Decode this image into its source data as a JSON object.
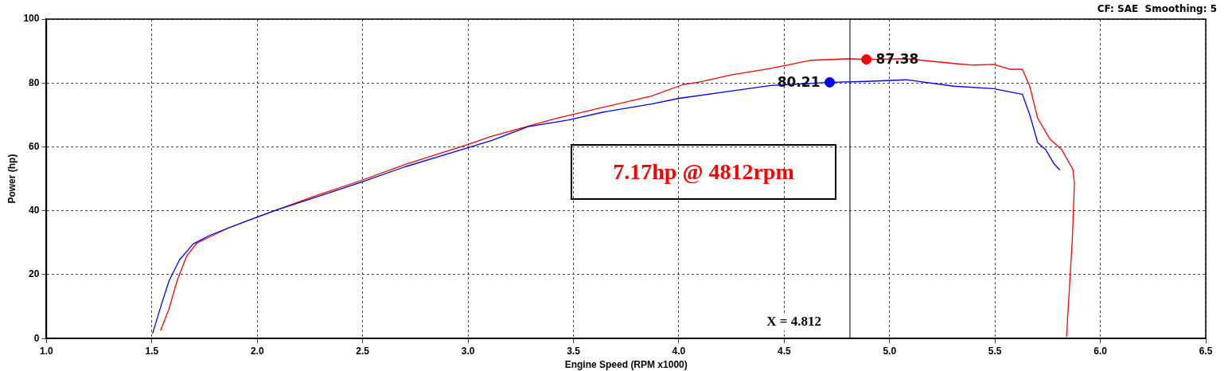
{
  "chart_data": {
    "type": "line",
    "xlabel": "Engine Speed (RPM x1000)",
    "ylabel": "Power (hp)",
    "annotations": [
      "CF: SAE  Smoothing: 5",
      "7.17hp @ 4812rpm"
    ],
    "series": [
      {
        "color": "#0000ff",
        "x": [
          1.503,
          1.545,
          1.582,
          1.631,
          1.696,
          1.771,
          1.866,
          1.987,
          2.093,
          2.282,
          2.49,
          2.698,
          2.924,
          3.113,
          3.284,
          3.473,
          3.643,
          3.87,
          4.002,
          4.248,
          4.437,
          4.716,
          4.89,
          5.079,
          5.305,
          5.494,
          5.57,
          5.63,
          5.665,
          5.703,
          5.74,
          5.778,
          5.808
        ],
        "values": [
          1.5,
          10.6,
          18.2,
          24.6,
          29.6,
          32.2,
          34.7,
          37.7,
          40.3,
          44.3,
          48.9,
          53.7,
          58.2,
          62.0,
          66.3,
          68.4,
          70.9,
          73.4,
          75.2,
          77.5,
          79.2,
          80.2,
          80.5,
          81.0,
          79.0,
          78.2,
          77.2,
          76.5,
          70.1,
          61.3,
          59.2,
          54.9,
          52.7
        ]
      },
      {
        "color": "#ff0000",
        "x": [
          1.541,
          1.582,
          1.62,
          1.665,
          1.714,
          1.866,
          2.093,
          2.282,
          2.49,
          2.698,
          3.0,
          3.113,
          3.416,
          3.643,
          3.87,
          4.02,
          4.096,
          4.248,
          4.437,
          4.626,
          4.81,
          4.89,
          5.079,
          5.305,
          5.399,
          5.494,
          5.57,
          5.63,
          5.665,
          5.703,
          5.76,
          5.816,
          5.87,
          5.877,
          5.867,
          5.844,
          5.84
        ],
        "values": [
          2.5,
          9.4,
          18.2,
          25.8,
          29.9,
          34.7,
          40.3,
          44.8,
          49.4,
          54.4,
          60.8,
          63.3,
          68.9,
          72.4,
          75.9,
          79.5,
          80.3,
          82.5,
          84.6,
          87.1,
          87.6,
          87.4,
          87.6,
          86.1,
          85.6,
          85.8,
          84.3,
          84.3,
          79.0,
          68.9,
          62.5,
          59.2,
          52.9,
          48.6,
          30.9,
          5.6,
          0.5
        ]
      },
      {
        "type": "scatter",
        "color": "#0000ff",
        "x": [
          4.716
        ],
        "values": [
          80.21
        ],
        "value_labels": [
          "80.21"
        ]
      },
      {
        "type": "scatter",
        "color": "#ff0000",
        "x": [
          4.89
        ],
        "values": [
          87.38
        ],
        "value_labels": [
          "87.38"
        ]
      }
    ],
    "xlim": [
      1.0,
      6.5
    ],
    "xticks": [
      {
        "value": 1.0,
        "label": "1.0"
      },
      {
        "value": 1.5,
        "label": "1.5"
      },
      {
        "value": 2.0,
        "label": "2.0"
      },
      {
        "value": 2.5,
        "label": "2.5"
      },
      {
        "value": 3.0,
        "label": "3.0"
      },
      {
        "value": 3.5,
        "label": "3.5"
      },
      {
        "value": 4.0,
        "label": "4.0"
      },
      {
        "value": 4.5,
        "label": "4.5"
      },
      {
        "value": 5.0,
        "label": "5.0"
      },
      {
        "value": 5.5,
        "label": "5.5"
      },
      {
        "value": 6.0,
        "label": "6.0"
      },
      {
        "value": 6.5,
        "label": "6.5"
      }
    ],
    "ylim": [
      0,
      100
    ],
    "yticks": [
      0,
      20,
      40,
      60,
      80,
      100
    ],
    "ref_lines": [
      {
        "axis": "x",
        "value": 4.812,
        "label": "X = 4.812",
        "color": "#000000"
      }
    ],
    "grid": true,
    "legend": false,
    "line_style": "solid"
  }
}
